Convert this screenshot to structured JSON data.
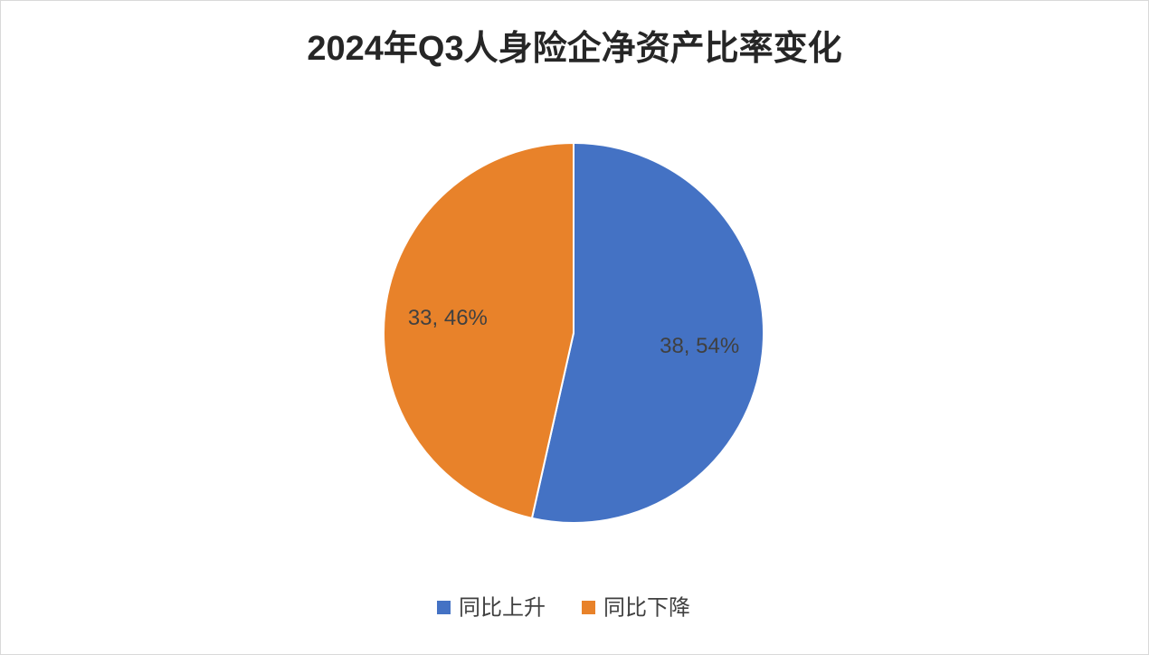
{
  "chart_data": {
    "type": "pie",
    "title": "2024年Q3人身险企净资产比率变化",
    "categories": [
      "同比上升",
      "同比下降"
    ],
    "values": [
      38,
      33
    ],
    "value_labels": [
      "38, 54%",
      "33, 46%"
    ],
    "colors": [
      "#4472c4",
      "#e8822a"
    ],
    "legend": "bottom"
  }
}
